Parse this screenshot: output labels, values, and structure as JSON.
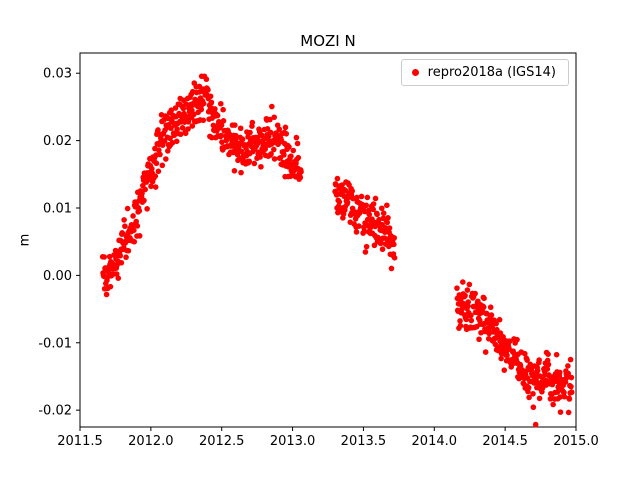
{
  "chart_data": {
    "type": "scatter",
    "title": "MOZI N",
    "xlabel": "",
    "ylabel": "m",
    "xlim": [
      2011.5,
      2015.0
    ],
    "ylim": [
      -0.0225,
      0.033
    ],
    "xticks": [
      2011.5,
      2012.0,
      2012.5,
      2013.0,
      2013.5,
      2014.0,
      2014.5,
      2015.0
    ],
    "yticks": [
      -0.02,
      -0.01,
      0.0,
      0.01,
      0.02,
      0.03
    ],
    "grid": false,
    "legend_position": "upper right",
    "series": [
      {
        "name": "repro2018a (IGS14)",
        "color": "#ff0000",
        "marker": "dot",
        "marker_radius_px": 2.8,
        "segments": [
          {
            "x_start": 2011.66,
            "x_end": 2013.06,
            "n": 510,
            "noise_sd": 0.0017,
            "anchors": [
              [
                2011.66,
                0.0
              ],
              [
                2011.73,
                0.001
              ],
              [
                2011.8,
                0.004
              ],
              [
                2011.9,
                0.009
              ],
              [
                2011.97,
                0.015
              ],
              [
                2012.02,
                0.016
              ],
              [
                2012.08,
                0.021
              ],
              [
                2012.15,
                0.022
              ],
              [
                2012.25,
                0.024
              ],
              [
                2012.33,
                0.026
              ],
              [
                2012.4,
                0.026
              ],
              [
                2012.47,
                0.022
              ],
              [
                2012.55,
                0.02
              ],
              [
                2012.62,
                0.019
              ],
              [
                2012.7,
                0.019
              ],
              [
                2012.78,
                0.02
              ],
              [
                2012.85,
                0.021
              ],
              [
                2012.92,
                0.019
              ],
              [
                2013.0,
                0.017
              ],
              [
                2013.06,
                0.016
              ]
            ]
          },
          {
            "x_start": 2013.3,
            "x_end": 2013.72,
            "n": 154,
            "noise_sd": 0.0016,
            "anchors": [
              [
                2013.3,
                0.013
              ],
              [
                2013.38,
                0.011
              ],
              [
                2013.45,
                0.01
              ],
              [
                2013.52,
                0.008
              ],
              [
                2013.6,
                0.007
              ],
              [
                2013.66,
                0.006
              ],
              [
                2013.72,
                0.004
              ]
            ]
          },
          {
            "x_start": 2014.16,
            "x_end": 2014.97,
            "n": 297,
            "noise_sd": 0.0017,
            "anchors": [
              [
                2014.16,
                -0.004
              ],
              [
                2014.25,
                -0.005
              ],
              [
                2014.33,
                -0.006
              ],
              [
                2014.42,
                -0.008
              ],
              [
                2014.5,
                -0.011
              ],
              [
                2014.58,
                -0.013
              ],
              [
                2014.65,
                -0.015
              ],
              [
                2014.75,
                -0.015
              ],
              [
                2014.85,
                -0.016
              ],
              [
                2014.97,
                -0.016
              ]
            ]
          }
        ]
      }
    ]
  }
}
